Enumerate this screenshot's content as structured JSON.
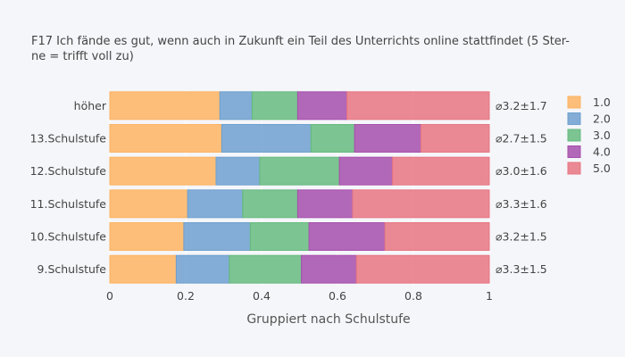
{
  "chart_data": {
    "type": "bar",
    "orientation": "horizontal",
    "stacked": true,
    "title_lines": [
      "F17 Ich fände es gut, wenn auch in Zukunft ein Teil des Unterrichts online stattfindet (5 Ster-",
      "ne = trifft voll zu)"
    ],
    "xlabel": "Gruppiert nach Schulstufe",
    "ylabel": "",
    "xlim": [
      0,
      1
    ],
    "x_ticks": [
      0,
      0.2,
      0.4,
      0.6,
      0.8,
      1
    ],
    "x_tick_labels": [
      "0",
      "0.2",
      "0.4",
      "0.6",
      "0.8",
      "1"
    ],
    "grid": true,
    "legend_position": "right",
    "categories": [
      "höher",
      "13.Schulstufe",
      "12.Schulstufe",
      "11.Schulstufe",
      "10.Schulstufe",
      "9.Schulstufe"
    ],
    "annotations": [
      "⌀3.2±1.7",
      "⌀2.7±1.5",
      "⌀3.0±1.6",
      "⌀3.3±1.6",
      "⌀3.2±1.5",
      "⌀3.3±1.5"
    ],
    "series": [
      {
        "name": "1.0",
        "color": "#fdb462",
        "values": [
          0.29,
          0.295,
          0.28,
          0.205,
          0.195,
          0.175
        ]
      },
      {
        "name": "2.0",
        "color": "#6ea0cf",
        "values": [
          0.085,
          0.235,
          0.115,
          0.145,
          0.175,
          0.14
        ]
      },
      {
        "name": "3.0",
        "color": "#66bb7f",
        "values": [
          0.12,
          0.115,
          0.21,
          0.145,
          0.155,
          0.19
        ]
      },
      {
        "name": "4.0",
        "color": "#a64fac",
        "values": [
          0.13,
          0.175,
          0.14,
          0.145,
          0.2,
          0.145
        ]
      },
      {
        "name": "5.0",
        "color": "#e77681",
        "values": [
          0.375,
          0.18,
          0.255,
          0.36,
          0.275,
          0.35
        ]
      }
    ]
  }
}
